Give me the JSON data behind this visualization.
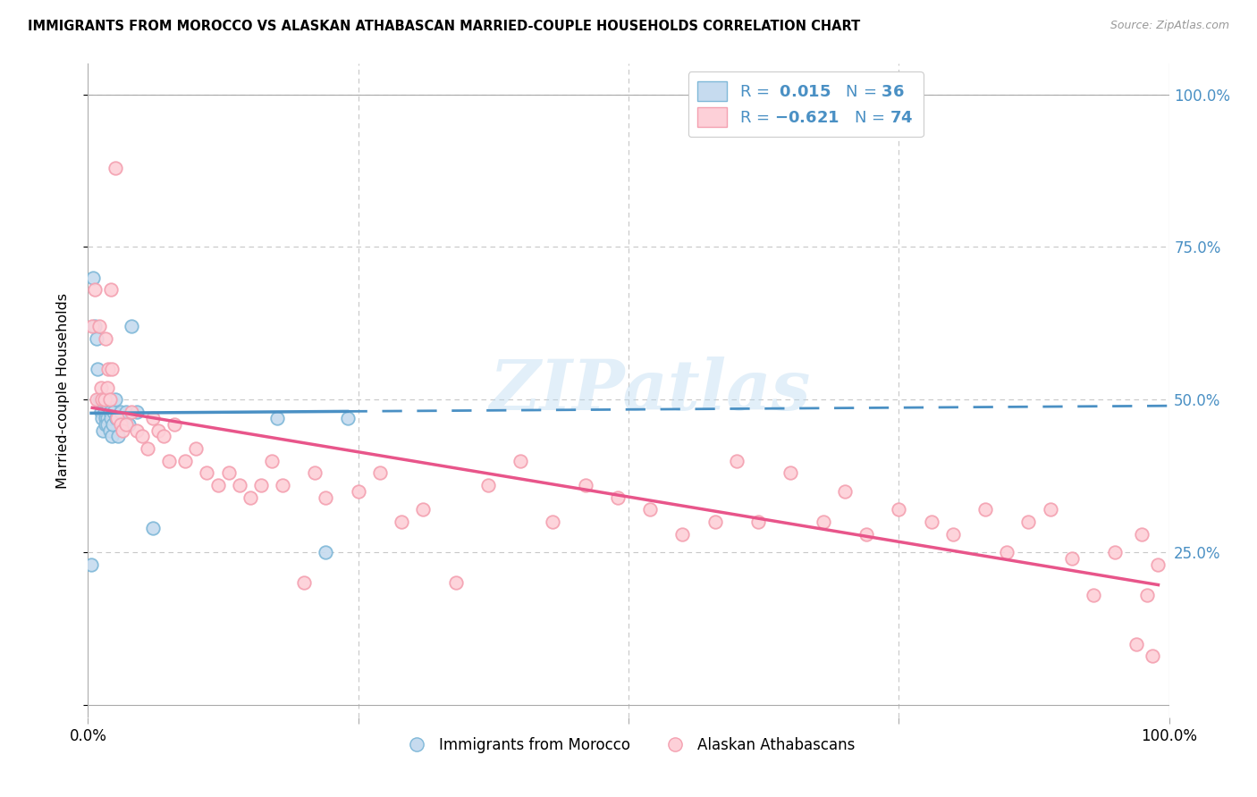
{
  "title": "IMMIGRANTS FROM MOROCCO VS ALASKAN ATHABASCAN MARRIED-COUPLE HOUSEHOLDS CORRELATION CHART",
  "source": "Source: ZipAtlas.com",
  "ylabel": "Married-couple Households",
  "xlim": [
    0,
    1
  ],
  "ylim": [
    -0.02,
    1.05
  ],
  "yticks": [
    0.0,
    0.25,
    0.5,
    0.75,
    1.0
  ],
  "ytick_labels_right": [
    "",
    "25.0%",
    "50.0%",
    "75.0%",
    "100.0%"
  ],
  "watermark": "ZIPatlas",
  "blue_color": "#7fb8d8",
  "blue_fill": "#c6dbef",
  "pink_color": "#f4a0b0",
  "pink_fill": "#fdd0d8",
  "trend_blue_solid": "#4a90c4",
  "trend_blue_dash": "#4a90c4",
  "trend_pink": "#e8558a",
  "blue_points_x": [
    0.003,
    0.005,
    0.006,
    0.008,
    0.009,
    0.01,
    0.011,
    0.012,
    0.013,
    0.014,
    0.015,
    0.016,
    0.016,
    0.017,
    0.018,
    0.018,
    0.019,
    0.02,
    0.02,
    0.021,
    0.022,
    0.023,
    0.024,
    0.025,
    0.026,
    0.028,
    0.03,
    0.032,
    0.035,
    0.038,
    0.04,
    0.045,
    0.06,
    0.175,
    0.22,
    0.24
  ],
  "blue_points_y": [
    0.23,
    0.7,
    0.62,
    0.6,
    0.55,
    0.5,
    0.5,
    0.48,
    0.47,
    0.45,
    0.48,
    0.47,
    0.46,
    0.5,
    0.47,
    0.46,
    0.49,
    0.48,
    0.45,
    0.47,
    0.44,
    0.46,
    0.48,
    0.5,
    0.47,
    0.44,
    0.48,
    0.46,
    0.48,
    0.46,
    0.62,
    0.48,
    0.29,
    0.47,
    0.25,
    0.47
  ],
  "pink_points_x": [
    0.004,
    0.006,
    0.008,
    0.01,
    0.012,
    0.013,
    0.015,
    0.016,
    0.018,
    0.019,
    0.02,
    0.021,
    0.022,
    0.025,
    0.027,
    0.03,
    0.032,
    0.035,
    0.04,
    0.045,
    0.05,
    0.055,
    0.06,
    0.065,
    0.07,
    0.075,
    0.08,
    0.09,
    0.1,
    0.11,
    0.12,
    0.13,
    0.14,
    0.15,
    0.16,
    0.17,
    0.18,
    0.2,
    0.21,
    0.22,
    0.25,
    0.27,
    0.29,
    0.31,
    0.34,
    0.37,
    0.4,
    0.43,
    0.46,
    0.49,
    0.52,
    0.55,
    0.58,
    0.6,
    0.62,
    0.65,
    0.68,
    0.7,
    0.72,
    0.75,
    0.78,
    0.8,
    0.83,
    0.85,
    0.87,
    0.89,
    0.91,
    0.93,
    0.95,
    0.97,
    0.975,
    0.98,
    0.985,
    0.99
  ],
  "pink_points_y": [
    0.62,
    0.68,
    0.5,
    0.62,
    0.52,
    0.5,
    0.5,
    0.6,
    0.52,
    0.55,
    0.5,
    0.68,
    0.55,
    0.88,
    0.47,
    0.46,
    0.45,
    0.46,
    0.48,
    0.45,
    0.44,
    0.42,
    0.47,
    0.45,
    0.44,
    0.4,
    0.46,
    0.4,
    0.42,
    0.38,
    0.36,
    0.38,
    0.36,
    0.34,
    0.36,
    0.4,
    0.36,
    0.2,
    0.38,
    0.34,
    0.35,
    0.38,
    0.3,
    0.32,
    0.2,
    0.36,
    0.4,
    0.3,
    0.36,
    0.34,
    0.32,
    0.28,
    0.3,
    0.4,
    0.3,
    0.38,
    0.3,
    0.35,
    0.28,
    0.32,
    0.3,
    0.28,
    0.32,
    0.25,
    0.3,
    0.32,
    0.24,
    0.18,
    0.25,
    0.1,
    0.28,
    0.18,
    0.08,
    0.23
  ]
}
